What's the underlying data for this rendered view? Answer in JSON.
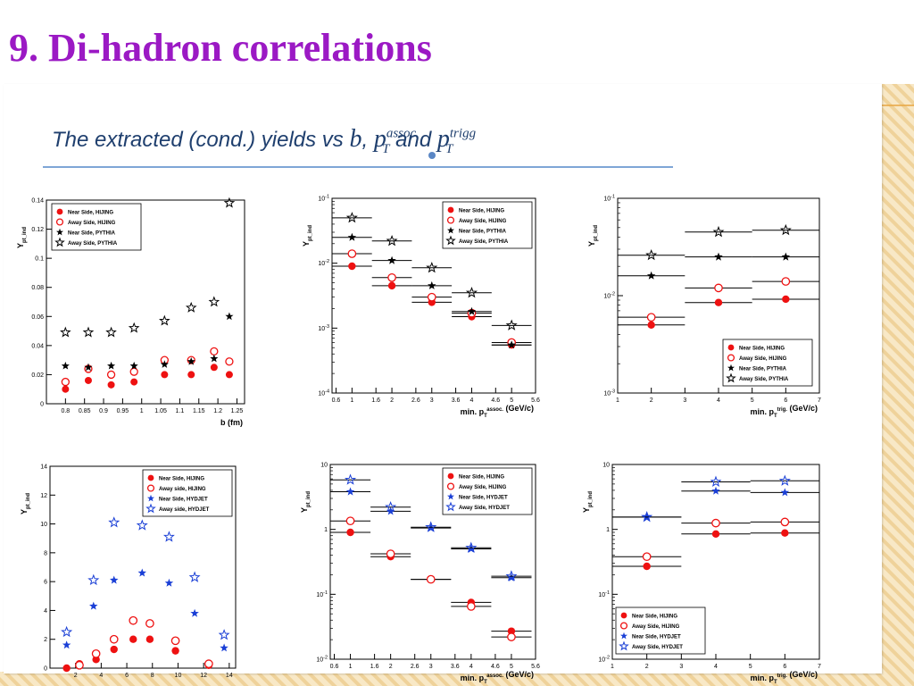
{
  "slide": {
    "title": "9. Di-hadron correlations",
    "image_heading": {
      "text": "The extracted (cond.) yields vs ",
      "b": "b",
      "comma": ", ",
      "pt": "p",
      "sub_T": "T",
      "sup_assoc": "assoc",
      "and": " and ",
      "sup_trigg": "trigg"
    }
  },
  "colors": {
    "title": "#9b19c4",
    "hijing": "#ee1111",
    "hydjet": "#1a3fd6",
    "pythia": "#000000",
    "background_stripes": "#f3dcb0"
  },
  "chart_data": [
    {
      "type": "scatter",
      "xlabel": "b (fm)",
      "ylabel": "Y_{pt_ind}",
      "xlim": [
        0.75,
        1.27
      ],
      "ylim": [
        0,
        0.14
      ],
      "yscale": "linear",
      "xticks": [
        "0.8",
        "0.85",
        "0.9",
        "0.95",
        "1",
        "1.05",
        "1.1",
        "1.15",
        "1.2",
        "1.25"
      ],
      "yticks": [
        "0",
        "0.02",
        "0.04",
        "0.06",
        "0.08",
        "0.1",
        "0.12",
        "0.14"
      ],
      "legend_position": "top-left",
      "series": [
        {
          "name": "Near Side, HIJING",
          "marker": "filled-circle",
          "color": "#ee1111",
          "points": [
            [
              0.8,
              0.01
            ],
            [
              0.86,
              0.016
            ],
            [
              0.92,
              0.013
            ],
            [
              0.98,
              0.015
            ],
            [
              1.06,
              0.02
            ],
            [
              1.13,
              0.02
            ],
            [
              1.19,
              0.025
            ],
            [
              1.23,
              0.02
            ]
          ]
        },
        {
          "name": "Away Side, HIJING",
          "marker": "open-circle",
          "color": "#ee1111",
          "points": [
            [
              0.8,
              0.015
            ],
            [
              0.86,
              0.024
            ],
            [
              0.92,
              0.02
            ],
            [
              0.98,
              0.022
            ],
            [
              1.06,
              0.03
            ],
            [
              1.13,
              0.03
            ],
            [
              1.19,
              0.036
            ],
            [
              1.23,
              0.029
            ]
          ]
        },
        {
          "name": "Near Side, PYTHIA",
          "marker": "filled-star",
          "color": "#000000",
          "points": [
            [
              0.8,
              0.026
            ],
            [
              0.86,
              0.025
            ],
            [
              0.92,
              0.026
            ],
            [
              0.98,
              0.026
            ],
            [
              1.06,
              0.027
            ],
            [
              1.13,
              0.029
            ],
            [
              1.19,
              0.031
            ],
            [
              1.23,
              0.06
            ]
          ]
        },
        {
          "name": "Away Side, PYTHIA",
          "marker": "open-star",
          "color": "#000000",
          "points": [
            [
              0.8,
              0.049
            ],
            [
              0.86,
              0.049
            ],
            [
              0.92,
              0.049
            ],
            [
              0.98,
              0.052
            ],
            [
              1.06,
              0.057
            ],
            [
              1.13,
              0.066
            ],
            [
              1.19,
              0.07
            ],
            [
              1.23,
              0.138
            ]
          ]
        }
      ]
    },
    {
      "type": "scatter",
      "xlabel": "min. p_T^{assoc.} (GeV/c)",
      "ylabel": "Y_{pt_ind}",
      "xlim": [
        0.5,
        5.6
      ],
      "ylim": [
        0.0001,
        0.1
      ],
      "yscale": "log",
      "xticks": [
        "0.6",
        "1",
        "1.6",
        "2",
        "2.6",
        "3",
        "3.6",
        "4",
        "4.6",
        "5",
        "5.6"
      ],
      "yticks": [
        "10^{-4}",
        "10^{-3}",
        "10^{-2}",
        "10^{-1}"
      ],
      "legend_position": "top-right",
      "series": [
        {
          "name": "Near Side, HIJING",
          "marker": "filled-circle",
          "color": "#ee1111",
          "points": [
            [
              1,
              0.009
            ],
            [
              2,
              0.0045
            ],
            [
              3,
              0.0025
            ],
            [
              4,
              0.0015
            ],
            [
              5,
              0.00055
            ]
          ]
        },
        {
          "name": "Away Side, HIJING",
          "marker": "open-circle",
          "color": "#ee1111",
          "points": [
            [
              1,
              0.014
            ],
            [
              2,
              0.006
            ],
            [
              3,
              0.003
            ],
            [
              4,
              0.0017
            ],
            [
              5,
              0.0006
            ]
          ]
        },
        {
          "name": "Near Side, PYTHIA",
          "marker": "filled-star",
          "color": "#000000",
          "points": [
            [
              1,
              0.025
            ],
            [
              2,
              0.011
            ],
            [
              3,
              0.0045
            ],
            [
              4,
              0.0018
            ],
            [
              5,
              0.00055
            ]
          ]
        },
        {
          "name": "Away Side, PYTHIA",
          "marker": "open-star",
          "color": "#000000",
          "points": [
            [
              1,
              0.05
            ],
            [
              2,
              0.022
            ],
            [
              3,
              0.0085
            ],
            [
              4,
              0.0035
            ],
            [
              5,
              0.0011
            ]
          ]
        }
      ]
    },
    {
      "type": "scatter",
      "xlabel": "min. p_T^{trig.} (GeV/c)",
      "ylabel": "Y_{pt_ind}",
      "xlim": [
        1,
        7
      ],
      "ylim": [
        0.001,
        0.1
      ],
      "yscale": "log",
      "xticks": [
        "1",
        "2",
        "3",
        "4",
        "5",
        "6",
        "7"
      ],
      "yticks": [
        "10^{-3}",
        "10^{-2}",
        "10^{-1}"
      ],
      "legend_position": "bottom-right",
      "series": [
        {
          "name": "Near Side, HIJING",
          "marker": "filled-circle",
          "color": "#ee1111",
          "points": [
            [
              2,
              0.005
            ],
            [
              4,
              0.0085
            ],
            [
              6,
              0.0092
            ]
          ]
        },
        {
          "name": "Away Side, HIJING",
          "marker": "open-circle",
          "color": "#ee1111",
          "points": [
            [
              2,
              0.006
            ],
            [
              4,
              0.012
            ],
            [
              6,
              0.014
            ]
          ]
        },
        {
          "name": "Near Side, PYTHIA",
          "marker": "filled-star",
          "color": "#000000",
          "points": [
            [
              2,
              0.016
            ],
            [
              4,
              0.025
            ],
            [
              6,
              0.025
            ]
          ]
        },
        {
          "name": "Away Side, PYTHIA",
          "marker": "open-star",
          "color": "#000000",
          "points": [
            [
              2,
              0.026
            ],
            [
              4,
              0.045
            ],
            [
              6,
              0.047
            ]
          ]
        }
      ]
    },
    {
      "type": "scatter",
      "xlabel": "",
      "ylabel": "Y_{pt_ind}",
      "xlim": [
        0,
        14.5
      ],
      "ylim": [
        0,
        14
      ],
      "yscale": "linear",
      "xticks": [
        "2",
        "4",
        "6",
        "8",
        "10",
        "12",
        "14"
      ],
      "yticks": [
        "0",
        "2",
        "4",
        "6",
        "8",
        "10",
        "12",
        "14"
      ],
      "legend_position": "top-right",
      "series": [
        {
          "name": "Near Side, HIJING",
          "marker": "filled-circle",
          "color": "#ee1111",
          "points": [
            [
              1.3,
              0
            ],
            [
              2.3,
              0.3
            ],
            [
              3.6,
              0.6
            ],
            [
              5,
              1.3
            ],
            [
              6.5,
              2
            ],
            [
              7.8,
              2
            ],
            [
              9.8,
              1.2
            ],
            [
              12.4,
              0.2
            ]
          ]
        },
        {
          "name": "Away side, HIJING",
          "marker": "open-circle",
          "color": "#ee1111",
          "points": [
            [
              2.3,
              0.2
            ],
            [
              3.6,
              1
            ],
            [
              5,
              2
            ],
            [
              6.5,
              3.3
            ],
            [
              7.8,
              3.1
            ],
            [
              9.8,
              1.9
            ],
            [
              12.4,
              0.3
            ]
          ]
        },
        {
          "name": "Near Side, HYDJET",
          "marker": "filled-star",
          "color": "#1a3fd6",
          "points": [
            [
              1.3,
              1.6
            ],
            [
              3.4,
              4.3
            ],
            [
              5,
              6.1
            ],
            [
              7.2,
              6.6
            ],
            [
              9.3,
              5.9
            ],
            [
              11.3,
              3.8
            ],
            [
              13.6,
              1.4
            ]
          ]
        },
        {
          "name": "Away side, HYDJET",
          "marker": "open-star",
          "color": "#1a3fd6",
          "points": [
            [
              1.3,
              2.5
            ],
            [
              3.4,
              6.1
            ],
            [
              5,
              10.1
            ],
            [
              7.2,
              9.9
            ],
            [
              9.3,
              9.1
            ],
            [
              11.3,
              6.3
            ],
            [
              13.6,
              2.3
            ]
          ]
        }
      ]
    },
    {
      "type": "scatter",
      "xlabel": "min. p_T^{assoc.} (GeV/c)",
      "ylabel": "Y_{pt_ind}",
      "xlim": [
        0.5,
        5.6
      ],
      "ylim": [
        0.01,
        10
      ],
      "yscale": "log",
      "xticks": [
        "0.6",
        "1",
        "1.6",
        "2",
        "2.6",
        "3",
        "3.6",
        "4",
        "4.6",
        "5",
        "5.6"
      ],
      "yticks": [
        "10^{-2}",
        "10^{-1}",
        "1",
        "10"
      ],
      "legend_position": "top-right",
      "series": [
        {
          "name": "Near Side, HIJING",
          "marker": "filled-circle",
          "color": "#ee1111",
          "points": [
            [
              1,
              0.9
            ],
            [
              2,
              0.38
            ],
            [
              3,
              0.17
            ],
            [
              4,
              0.075
            ],
            [
              5,
              0.027
            ]
          ]
        },
        {
          "name": "Away Side, HIJING",
          "marker": "open-circle",
          "color": "#ee1111",
          "points": [
            [
              1,
              1.35
            ],
            [
              2,
              0.42
            ],
            [
              3,
              0.17
            ],
            [
              4,
              0.065
            ],
            [
              5,
              0.022
            ]
          ]
        },
        {
          "name": "Near Side, HYDJET",
          "marker": "filled-star",
          "color": "#1a3fd6",
          "points": [
            [
              1,
              3.8
            ],
            [
              2,
              1.9
            ],
            [
              3,
              1.05
            ],
            [
              4,
              0.5
            ],
            [
              5,
              0.18
            ]
          ]
        },
        {
          "name": "Away Side, HYDJET",
          "marker": "open-star",
          "color": "#1a3fd6",
          "points": [
            [
              1,
              5.8
            ],
            [
              2,
              2.2
            ],
            [
              3,
              1.08
            ],
            [
              4,
              0.52
            ],
            [
              5,
              0.19
            ]
          ]
        }
      ]
    },
    {
      "type": "scatter",
      "xlabel": "min. p_T^{trig.} (GeV/c)",
      "ylabel": "Y_{pt_ind}",
      "xlim": [
        1,
        7
      ],
      "ylim": [
        0.01,
        10
      ],
      "yscale": "log",
      "xticks": [
        "1",
        "2",
        "3",
        "4",
        "5",
        "6",
        "7"
      ],
      "yticks": [
        "10^{-2}",
        "10^{-1}",
        "1",
        "10"
      ],
      "legend_position": "bottom-left",
      "series": [
        {
          "name": "Near Side, HIJING",
          "marker": "filled-circle",
          "color": "#ee1111",
          "points": [
            [
              2,
              0.27
            ],
            [
              4,
              0.85
            ],
            [
              6,
              0.88
            ]
          ]
        },
        {
          "name": "Away Side, HIJING",
          "marker": "open-circle",
          "color": "#ee1111",
          "points": [
            [
              2,
              0.38
            ],
            [
              4,
              1.25
            ],
            [
              6,
              1.3
            ]
          ]
        },
        {
          "name": "Near Side, HYDJET",
          "marker": "filled-star",
          "color": "#1a3fd6",
          "points": [
            [
              2,
              1.55
            ],
            [
              4,
              3.9
            ],
            [
              6,
              3.7
            ]
          ]
        },
        {
          "name": "Away Side, HYDJET",
          "marker": "open-star",
          "color": "#1a3fd6",
          "points": [
            [
              2,
              1.55
            ],
            [
              4,
              5.4
            ],
            [
              6,
              5.6
            ]
          ]
        }
      ]
    }
  ]
}
